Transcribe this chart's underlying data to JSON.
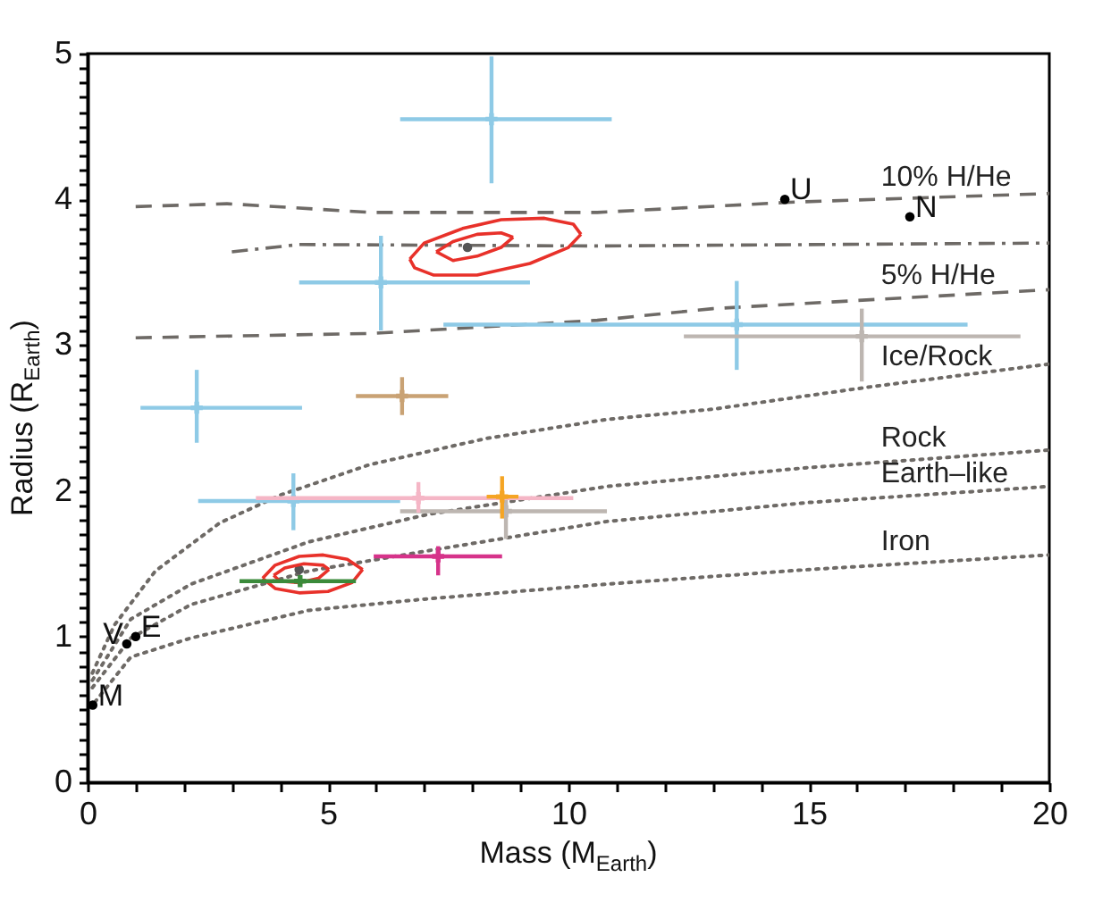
{
  "chart_data": {
    "type": "scatter",
    "xlabel": "Mass (M$_{Earth}$)",
    "ylabel": "Radius (R$_{Earth}$)",
    "xlim": [
      0,
      20
    ],
    "ylim": [
      0,
      5
    ],
    "xticks": [
      0,
      {
        "value": 1,
        "label": null
      },
      {
        "value": 2,
        "label": null
      },
      {
        "value": 3,
        "label": null
      },
      {
        "value": 4,
        "label": null
      },
      5,
      {
        "value": 6,
        "label": null
      },
      {
        "value": 7,
        "label": null
      },
      {
        "value": 8,
        "label": null
      },
      {
        "value": 9,
        "label": null
      },
      10,
      {
        "value": 11,
        "label": null
      },
      {
        "value": 12,
        "label": null
      },
      {
        "value": 13,
        "label": null
      },
      {
        "value": 14,
        "label": null
      },
      15,
      {
        "value": 16,
        "label": null
      },
      {
        "value": 17,
        "label": null
      },
      {
        "value": 18,
        "label": null
      },
      {
        "value": 19,
        "label": null
      },
      20
    ],
    "yticks": [
      0,
      {
        "value": 0.1,
        "label": null
      },
      {
        "value": 0.2,
        "label": null
      },
      {
        "value": 0.3,
        "label": null
      },
      {
        "value": 0.4,
        "label": null
      },
      {
        "value": 0.5,
        "label": null
      },
      {
        "value": 0.6,
        "label": null
      },
      {
        "value": 0.7,
        "label": null
      },
      {
        "value": 0.8,
        "label": null
      },
      {
        "value": 0.9,
        "label": null
      },
      1,
      {
        "value": 1.1,
        "label": null
      },
      {
        "value": 1.2,
        "label": null
      },
      {
        "value": 1.3,
        "label": null
      },
      {
        "value": 1.4,
        "label": null
      },
      {
        "value": 1.5,
        "label": null
      },
      {
        "value": 1.6,
        "label": null
      },
      {
        "value": 1.7,
        "label": null
      },
      {
        "value": 1.8,
        "label": null
      },
      {
        "value": 1.9,
        "label": null
      },
      2,
      {
        "value": 2.1,
        "label": null
      },
      {
        "value": 2.2,
        "label": null
      },
      {
        "value": 2.3,
        "label": null
      },
      {
        "value": 2.4,
        "label": null
      },
      {
        "value": 2.5,
        "label": null
      },
      {
        "value": 2.6,
        "label": null
      },
      {
        "value": 2.7,
        "label": null
      },
      {
        "value": 2.8,
        "label": null
      },
      {
        "value": 2.9,
        "label": null
      },
      3,
      {
        "value": 3.1,
        "label": null
      },
      {
        "value": 3.2,
        "label": null
      },
      {
        "value": 3.3,
        "label": null
      },
      {
        "value": 3.4,
        "label": null
      },
      {
        "value": 3.5,
        "label": null
      },
      {
        "value": 3.6,
        "label": null
      },
      {
        "value": 3.7,
        "label": null
      },
      {
        "value": 3.8,
        "label": null
      },
      {
        "value": 3.9,
        "label": null
      },
      4,
      {
        "value": 4.1,
        "label": null
      },
      {
        "value": 4.2,
        "label": null
      },
      {
        "value": 4.3,
        "label": null
      },
      {
        "value": 4.4,
        "label": null
      },
      {
        "value": 4.5,
        "label": null
      },
      {
        "value": 4.6,
        "label": null
      },
      {
        "value": 4.7,
        "label": null
      },
      {
        "value": 4.8,
        "label": null
      },
      {
        "value": 4.9,
        "label": null
      },
      5
    ],
    "series": [
      {
        "name": "10% H/He",
        "type": "line",
        "line_style": "dashed",
        "color": "#6e6a66",
        "x": [
          1.0,
          2.9,
          5.9,
          10.6,
          14.6,
          20
        ],
        "values": [
          3.95,
          3.97,
          3.91,
          3.91,
          3.98,
          4.04
        ]
      },
      {
        "type": "line",
        "line_style": "dashdot",
        "color": "#6e6a66",
        "x": [
          3.0,
          4.4,
          10.6,
          20
        ],
        "values": [
          3.64,
          3.69,
          3.68,
          3.7
        ]
      },
      {
        "name": "5% H/He",
        "type": "line",
        "line_style": "dashed",
        "color": "#6e6a66",
        "x": [
          1.0,
          5.9,
          10.6,
          13.0,
          20
        ],
        "values": [
          3.05,
          3.08,
          3.17,
          3.25,
          3.38
        ]
      },
      {
        "name": "Ice/Rock",
        "type": "line",
        "line_style": "dotted",
        "color": "#6e6a66",
        "x": [
          0.1,
          0.56,
          1.41,
          2.75,
          4.0,
          5.87,
          8.3,
          10.8,
          13.0,
          16.2,
          20
        ],
        "values": [
          0.75,
          1.08,
          1.45,
          1.78,
          1.97,
          2.18,
          2.36,
          2.49,
          2.56,
          2.71,
          2.87
        ]
      },
      {
        "name": "Rock",
        "type": "line",
        "line_style": "dotted",
        "color": "#6e6a66",
        "x": [
          0.1,
          0.9,
          2.15,
          4.6,
          7.1,
          10.8,
          15,
          20
        ],
        "values": [
          0.7,
          1.12,
          1.36,
          1.65,
          1.84,
          2.03,
          2.16,
          2.28
        ]
      },
      {
        "name": "Earth–like",
        "type": "line",
        "line_style": "dotted",
        "color": "#6e6a66",
        "x": [
          0.1,
          0.9,
          2.15,
          4.6,
          7.1,
          10.8,
          15,
          20
        ],
        "values": [
          0.65,
          0.99,
          1.22,
          1.45,
          1.59,
          1.79,
          1.92,
          2.03
        ]
      },
      {
        "name": "Iron",
        "type": "line",
        "line_style": "dotted",
        "color": "#6e6a66",
        "x": [
          0.15,
          0.9,
          2.15,
          4.6,
          7.1,
          10.8,
          15,
          20
        ],
        "values": [
          0.55,
          0.86,
          0.99,
          1.18,
          1.26,
          1.36,
          1.46,
          1.56
        ]
      },
      {
        "type": "scatter",
        "marker": "circle",
        "color": "#555555",
        "x": [
          7.9,
          4.4
        ],
        "values": [
          3.67,
          1.46
        ]
      },
      {
        "type": "line",
        "line_style": "solid",
        "color": "#e8312a",
        "x": [
          6.7,
          7.0,
          7.8,
          8.6,
          9.5,
          10.1,
          10.26
        ],
        "values": [
          3.59,
          3.7,
          3.8,
          3.86,
          3.87,
          3.83,
          3.76
        ]
      },
      {
        "type": "line",
        "line_style": "solid",
        "color": "#e8312a",
        "x": [
          6.7,
          6.8,
          7.2,
          8.1,
          9.2,
          10.0,
          10.26
        ],
        "values": [
          3.59,
          3.53,
          3.48,
          3.48,
          3.56,
          3.67,
          3.76
        ]
      },
      {
        "type": "line",
        "line_style": "solid",
        "color": "#e8312a",
        "x": [
          7.25,
          7.6,
          8.1,
          8.6,
          8.85
        ],
        "values": [
          3.64,
          3.71,
          3.76,
          3.77,
          3.74
        ]
      },
      {
        "type": "line",
        "line_style": "solid",
        "color": "#e8312a",
        "x": [
          7.25,
          7.6,
          8.1,
          8.6,
          8.85
        ],
        "values": [
          3.64,
          3.58,
          3.61,
          3.67,
          3.74
        ]
      },
      {
        "type": "line",
        "line_style": "solid",
        "color": "#e8312a",
        "x": [
          3.64,
          3.9,
          4.4,
          4.9,
          5.4,
          5.72
        ],
        "values": [
          1.4,
          1.49,
          1.55,
          1.56,
          1.53,
          1.46
        ]
      },
      {
        "type": "line",
        "line_style": "solid",
        "color": "#e8312a",
        "x": [
          3.64,
          3.9,
          4.4,
          5.0,
          5.5,
          5.72
        ],
        "values": [
          1.4,
          1.33,
          1.3,
          1.31,
          1.37,
          1.46
        ]
      },
      {
        "type": "line",
        "line_style": "solid",
        "color": "#e8312a",
        "x": [
          3.87,
          4.1,
          4.5,
          4.9,
          5.02
        ],
        "values": [
          1.42,
          1.47,
          1.5,
          1.49,
          1.46
        ]
      },
      {
        "type": "line",
        "line_style": "solid",
        "color": "#e8312a",
        "x": [
          3.87,
          4.0,
          4.4,
          4.8,
          5.02
        ],
        "values": [
          1.42,
          1.38,
          1.37,
          1.4,
          1.46
        ]
      },
      {
        "marker": "cross",
        "color": "#8ecae6",
        "x": [
          8.4,
          6.1,
          2.27,
          13.5,
          4.28
        ],
        "values": [
          4.55,
          3.43,
          2.57,
          3.14,
          1.93
        ],
        "errors": [
          [
            4.11,
            4.98
          ],
          [
            3.1,
            3.75
          ],
          [
            2.33,
            2.83
          ],
          [
            2.83,
            3.44
          ],
          [
            1.73,
            2.12
          ]
        ],
        "xerrors": [
          [
            6.5,
            10.9
          ],
          [
            4.4,
            9.2
          ],
          [
            1.1,
            4.46
          ],
          [
            7.4,
            18.3
          ],
          [
            2.3,
            6.5
          ]
        ]
      },
      {
        "marker": "cross",
        "color": "#c9a274",
        "x": [
          6.54
        ],
        "values": [
          2.65
        ],
        "errors": [
          [
            2.52,
            2.78
          ]
        ],
        "xerrors": [
          [
            5.58,
            7.5
          ]
        ]
      },
      {
        "marker": "cross",
        "color": "#bdb6b1",
        "x": [
          16.1,
          8.7
        ],
        "values": [
          3.06,
          1.86
        ],
        "errors": [
          [
            2.75,
            3.25
          ],
          [
            1.67,
            1.95
          ]
        ],
        "xerrors": [
          [
            12.4,
            19.4
          ],
          [
            6.5,
            10.8
          ]
        ]
      },
      {
        "marker": "cross",
        "color": "#f5b6c6",
        "x": [
          6.88
        ],
        "values": [
          1.95
        ],
        "errors": [
          [
            1.85,
            2.06
          ]
        ],
        "xerrors": [
          [
            3.5,
            10.1
          ]
        ]
      },
      {
        "marker": "cross",
        "color": "#f5a524",
        "x": [
          8.62
        ],
        "values": [
          1.96
        ],
        "errors": [
          [
            1.81,
            2.1
          ]
        ],
        "xerrors": [
          [
            8.3,
            8.96
          ]
        ]
      },
      {
        "marker": "cross",
        "color": "#d6338a",
        "x": [
          7.29
        ],
        "values": [
          1.55
        ],
        "errors": [
          [
            1.42,
            1.62
          ]
        ],
        "xerrors": [
          [
            5.95,
            8.62
          ]
        ]
      },
      {
        "marker": "cross",
        "color": "#3a8a3a",
        "x": [
          4.42
        ],
        "values": [
          1.38
        ],
        "errors": [
          [
            1.35,
            1.41
          ]
        ],
        "xerrors": [
          [
            3.16,
            5.58
          ]
        ]
      },
      {
        "type": "scatter",
        "marker": "circle",
        "color": "#000000",
        "x": [
          0.815,
          1.0,
          0.107,
          14.5,
          17.1
        ],
        "values": [
          0.95,
          1.0,
          0.53,
          4.0,
          3.88
        ]
      }
    ],
    "annotations": [
      {
        "text": "V",
        "x": 0.815,
        "y": 0.95
      },
      {
        "text": "E",
        "x": 1.0,
        "y": 1.0
      },
      {
        "text": "M",
        "x": 0.107,
        "y": 0.53
      },
      {
        "text": "U",
        "x": 14.5,
        "y": 4.0
      },
      {
        "text": "N",
        "x": 17.1,
        "y": 3.88
      }
    ]
  }
}
